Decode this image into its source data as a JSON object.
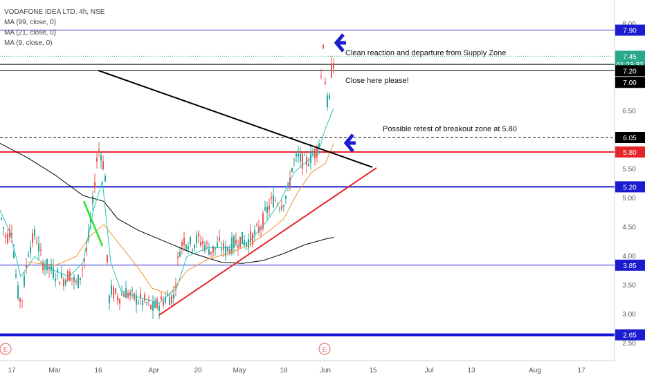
{
  "header": {
    "symbol_line": "VODAFONE IDEA LTD, 4h, NSE",
    "indicators": [
      "MA (99, close, 0)",
      "MA (21, close, 0)",
      "MA (9, close, 0)"
    ]
  },
  "chart_data": {
    "type": "candlestick",
    "ylim": [
      2.3,
      8.2
    ],
    "y_ticks": [
      "8.00",
      "6.50",
      "5.50",
      "5.00",
      "4.50",
      "4.00",
      "3.50",
      "3.00",
      "2.50"
    ],
    "x_ticks": [
      "17",
      "Mar",
      "16",
      "Apr",
      "20",
      "May",
      "18",
      "Jun",
      "15",
      "Jul",
      "13",
      "Aug",
      "17"
    ],
    "price_badges": [
      {
        "label": "7.90",
        "value": 7.9,
        "color": "#1b1bd0"
      },
      {
        "label": "7.45",
        "value": 7.45,
        "color": "#2aa88a"
      },
      {
        "label": "01:23:32",
        "value": 7.31,
        "color": "#2aa88a"
      },
      {
        "label": "7.20",
        "value": 7.2,
        "color": "#000000"
      },
      {
        "label": "7.00",
        "value": 7.0,
        "color": "#000000"
      },
      {
        "label": "6.05",
        "value": 6.05,
        "color": "#000000"
      },
      {
        "label": "5.80",
        "value": 5.8,
        "color": "#e8242b"
      },
      {
        "label": "5.20",
        "value": 5.2,
        "color": "#1b1bd0"
      },
      {
        "label": "3.85",
        "value": 3.85,
        "color": "#1b1bd0"
      },
      {
        "label": "2.65",
        "value": 2.65,
        "color": "#1b1bd0"
      }
    ],
    "horizontal_levels": [
      {
        "value": 7.9,
        "color": "#2b2bd6",
        "style": "solid"
      },
      {
        "value": 7.45,
        "color": "#26a69a",
        "style": "dotted"
      },
      {
        "value": 7.31,
        "color": "#000000",
        "style": "solid"
      },
      {
        "value": 7.2,
        "color": "#000000",
        "style": "solid"
      },
      {
        "value": 6.05,
        "color": "#000000",
        "style": "dashed"
      },
      {
        "value": 5.8,
        "color": "#e8242b",
        "style": "solid"
      },
      {
        "value": 5.2,
        "color": "#1b1bd0",
        "style": "solid"
      },
      {
        "value": 3.85,
        "color": "#2b2bd6",
        "style": "solid"
      },
      {
        "value": 2.65,
        "color": "#1212d8",
        "style": "solid"
      }
    ],
    "annotations": [
      {
        "text": "Clean reaction and departure from Supply Zone",
        "value": 7.45
      },
      {
        "text": "Close here please!",
        "value": 7.2
      },
      {
        "text": "Possible retest of breakout zone at 5.80",
        "value": 6.18
      }
    ],
    "event_markers": [
      "E",
      "E"
    ],
    "colors": {
      "up": "#26a69a",
      "down": "#ef5350",
      "ma99": "#000000",
      "ma21": "#f0922e",
      "ma9": "#26c6b8"
    }
  }
}
